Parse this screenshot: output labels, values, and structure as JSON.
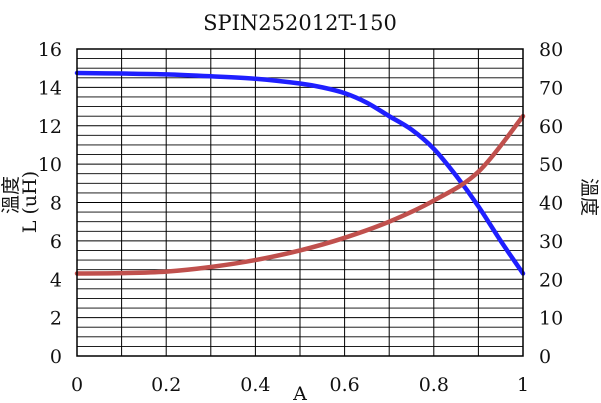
{
  "chart_data": {
    "type": "line",
    "title": "SPIN252012T-150",
    "xlabel": "A",
    "ylabel_left": "L (uH)",
    "ylabel_left_overlap": "溫度",
    "ylabel_right": "溫度",
    "xlim": [
      0,
      1
    ],
    "ylim_left": [
      0,
      16
    ],
    "ylim_right": [
      0,
      80
    ],
    "x_ticks": [
      "0",
      "0.2",
      "0.4",
      "0.6",
      "0.8",
      "1"
    ],
    "y_left_ticks": [
      "0",
      "2",
      "4",
      "6",
      "8",
      "10",
      "12",
      "14",
      "16"
    ],
    "y_right_ticks": [
      "0",
      "10",
      "20",
      "30",
      "40",
      "50",
      "60",
      "70",
      "80"
    ],
    "grid": true,
    "series": [
      {
        "axis": "left",
        "color": "#1f1fff",
        "x": [
          0,
          0.1,
          0.2,
          0.3,
          0.4,
          0.5,
          0.55,
          0.6,
          0.65,
          0.7,
          0.75,
          0.8,
          0.85,
          0.9,
          0.95,
          1.0
        ],
        "y": [
          14.75,
          14.72,
          14.68,
          14.58,
          14.45,
          14.2,
          14.0,
          13.7,
          13.2,
          12.5,
          11.8,
          10.8,
          9.4,
          7.8,
          6.0,
          4.3
        ]
      },
      {
        "axis": "right",
        "color": "#c0504d",
        "x": [
          0,
          0.1,
          0.2,
          0.3,
          0.4,
          0.5,
          0.6,
          0.7,
          0.8,
          0.9,
          1.0
        ],
        "y": [
          21.5,
          21.6,
          22.0,
          23.2,
          25.0,
          27.5,
          30.8,
          35.0,
          40.5,
          48.0,
          62.5
        ]
      }
    ]
  }
}
